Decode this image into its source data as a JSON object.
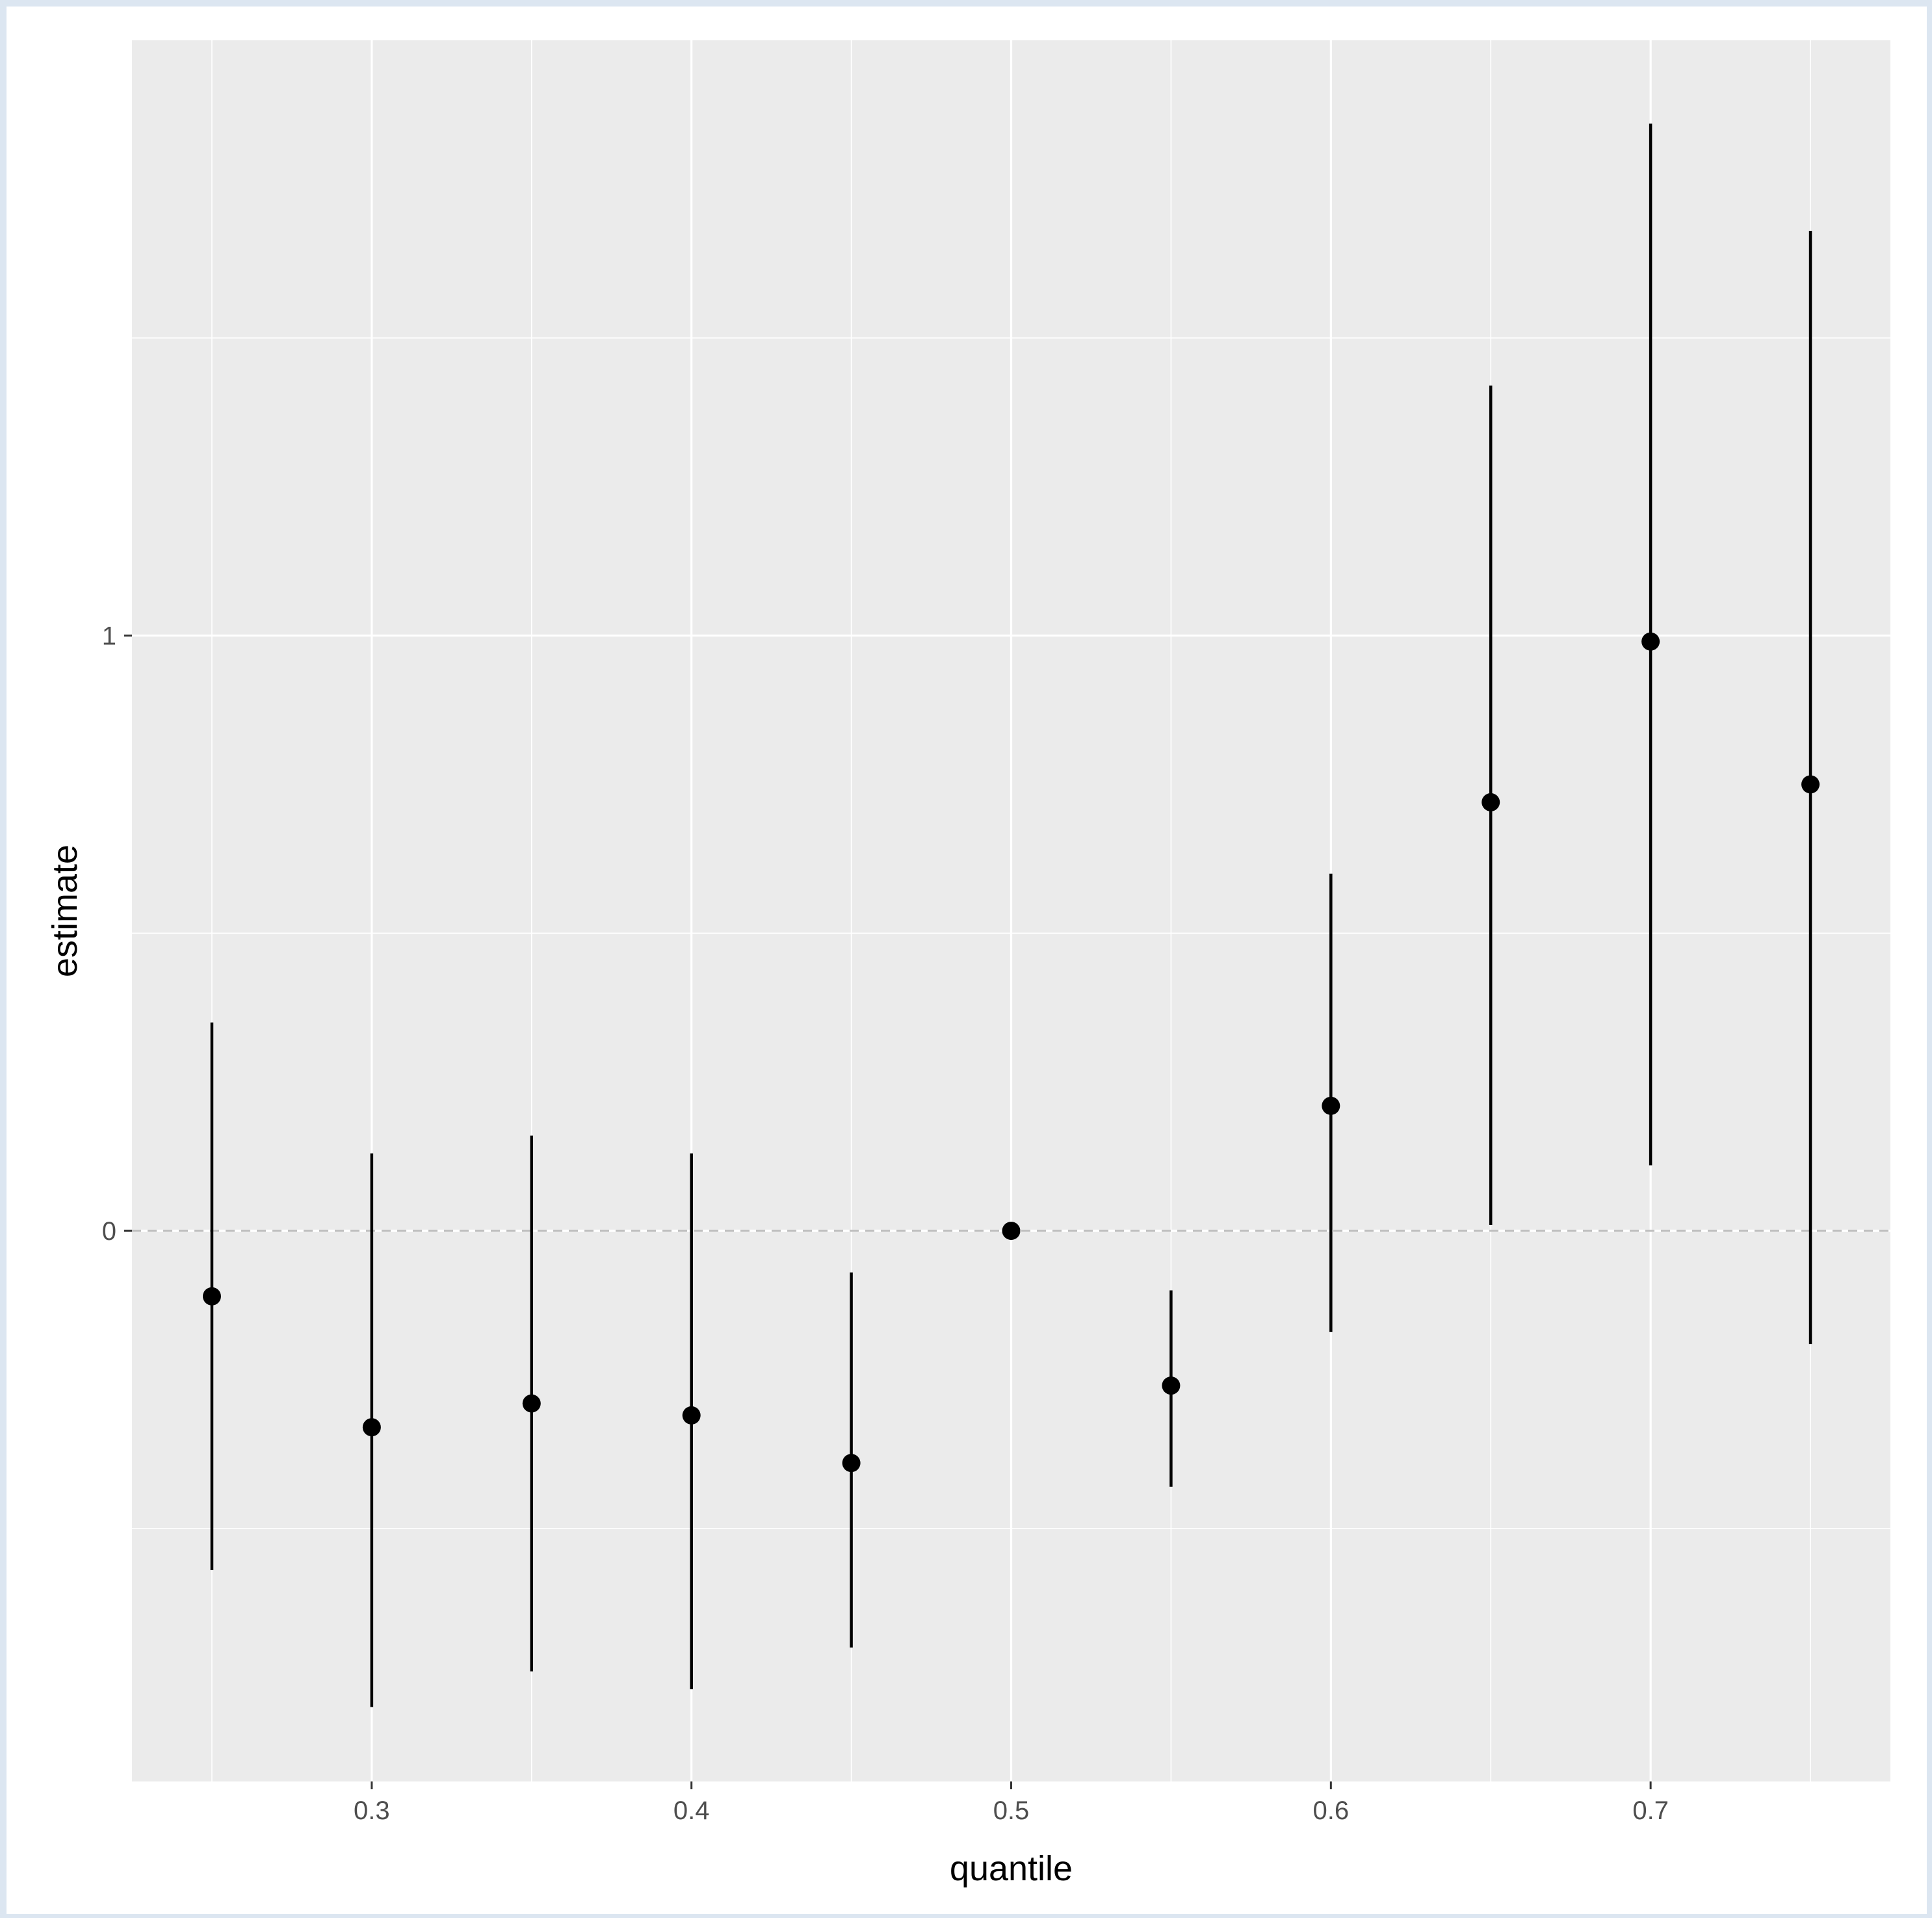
{
  "chart_data": {
    "type": "scatter",
    "xlabel": "quantile",
    "ylabel": "estimate",
    "xlim": [
      0.225,
      0.775
    ],
    "ylim": [
      -0.925,
      2.0
    ],
    "x_ticks": [
      {
        "value": 0.3,
        "label": "0.3"
      },
      {
        "value": 0.4,
        "label": "0.4"
      },
      {
        "value": 0.5,
        "label": "0.5"
      },
      {
        "value": 0.6,
        "label": "0.6"
      },
      {
        "value": 0.7,
        "label": "0.7"
      }
    ],
    "y_ticks": [
      {
        "value": 0,
        "label": "0"
      },
      {
        "value": 1,
        "label": "1"
      }
    ],
    "x_minor_grid": [
      0.25,
      0.35,
      0.45,
      0.55,
      0.65,
      0.75
    ],
    "y_minor_grid": [
      -0.5,
      0.5,
      1.5
    ],
    "grid": true,
    "reference_line": {
      "y": 0,
      "style": "dashed",
      "color": "#bfbfbf"
    },
    "points": [
      {
        "x": 0.25,
        "y": -0.11,
        "lower": -0.57,
        "upper": 0.35
      },
      {
        "x": 0.3,
        "y": -0.33,
        "lower": -0.8,
        "upper": 0.13
      },
      {
        "x": 0.35,
        "y": -0.29,
        "lower": -0.74,
        "upper": 0.16
      },
      {
        "x": 0.4,
        "y": -0.31,
        "lower": -0.77,
        "upper": 0.13
      },
      {
        "x": 0.45,
        "y": -0.39,
        "lower": -0.7,
        "upper": -0.07
      },
      {
        "x": 0.5,
        "y": 0.0,
        "lower": 0.0,
        "upper": 0.0
      },
      {
        "x": 0.55,
        "y": -0.26,
        "lower": -0.43,
        "upper": -0.1
      },
      {
        "x": 0.6,
        "y": 0.21,
        "lower": -0.17,
        "upper": 0.6
      },
      {
        "x": 0.65,
        "y": 0.72,
        "lower": 0.01,
        "upper": 1.42
      },
      {
        "x": 0.7,
        "y": 0.99,
        "lower": 0.11,
        "upper": 1.86
      },
      {
        "x": 0.75,
        "y": 0.75,
        "lower": -0.19,
        "upper": 1.68
      }
    ],
    "colors": {
      "panel_background": "#ebebeb",
      "grid": "#ffffff",
      "marks": "#000000"
    }
  }
}
